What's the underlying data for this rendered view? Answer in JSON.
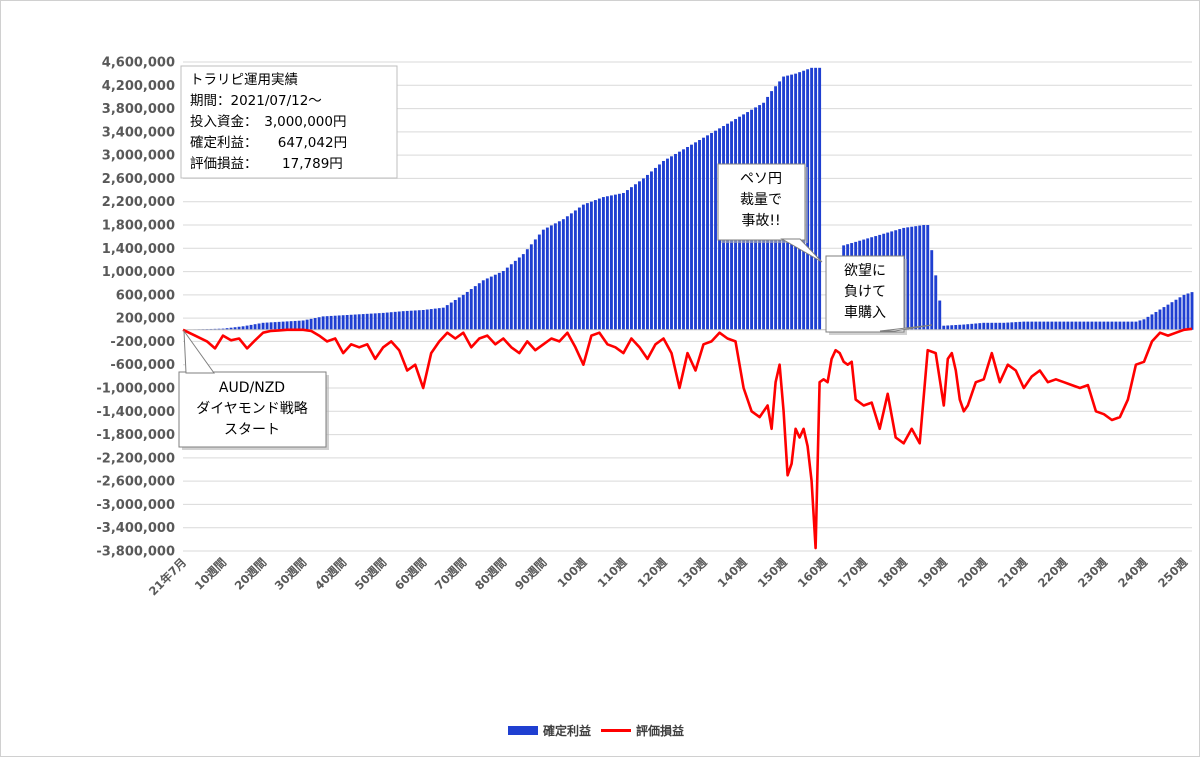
{
  "chart_data": {
    "type": "bar+line",
    "title": "",
    "xlabel": "",
    "ylabel": "",
    "ylim": [
      -3800000,
      4600000
    ],
    "y_ticks": [
      "4,600,000",
      "4,200,000",
      "3,800,000",
      "3,400,000",
      "3,000,000",
      "2,600,000",
      "2,200,000",
      "1,800,000",
      "1,400,000",
      "1,000,000",
      "600,000",
      "200,000",
      "-200,000",
      "-600,000",
      "-1,000,000",
      "-1,400,000",
      "-1,800,000",
      "-2,200,000",
      "-2,600,000",
      "-3,000,000",
      "-3,400,000",
      "-3,800,000"
    ],
    "x_ticks": [
      "21年7月",
      "10週間",
      "20週間",
      "30週間",
      "40週間",
      "50週間",
      "60週間",
      "70週間",
      "80週間",
      "90週間",
      "100週",
      "110週",
      "120週",
      "130週",
      "140週",
      "150週",
      "160週",
      "170週",
      "180週",
      "190週",
      "200週",
      "210週",
      "220週",
      "230週",
      "240週",
      "250週"
    ],
    "grid": true,
    "legend_position": "bottom",
    "series": [
      {
        "name": "確定利益",
        "kind": "bar",
        "color": "#1f3fd1",
        "anchor_weeks": [
          0,
          5,
          10,
          15,
          20,
          25,
          30,
          35,
          40,
          45,
          50,
          55,
          60,
          65,
          70,
          75,
          80,
          85,
          90,
          95,
          100,
          105,
          110,
          115,
          120,
          125,
          130,
          135,
          140,
          145,
          147,
          150,
          153,
          157,
          158,
          159,
          160,
          165,
          170,
          175,
          180,
          185,
          186,
          190,
          195,
          200,
          205,
          210,
          215,
          220,
          225,
          230,
          235,
          238,
          240,
          245,
          250,
          252
        ],
        "anchor_values": [
          0,
          10000,
          20000,
          60000,
          120000,
          140000,
          160000,
          230000,
          250000,
          270000,
          290000,
          320000,
          340000,
          380000,
          600000,
          850000,
          1010000,
          1300000,
          1720000,
          1900000,
          2150000,
          2280000,
          2350000,
          2600000,
          2900000,
          3100000,
          3300000,
          3500000,
          3700000,
          3900000,
          4100000,
          4350000,
          4400000,
          4500000,
          4500000,
          4500000,
          0,
          1450000,
          1550000,
          1650000,
          1750000,
          1800000,
          1800000,
          70000,
          90000,
          120000,
          120000,
          140000,
          140000,
          140000,
          140000,
          140000,
          140000,
          140000,
          180000,
          390000,
          600000,
          647042
        ]
      },
      {
        "name": "評価損益",
        "kind": "line",
        "color": "#ff0000",
        "anchor_weeks": [
          0,
          3,
          6,
          8,
          10,
          12,
          14,
          16,
          18,
          20,
          22,
          24,
          26,
          28,
          30,
          32,
          34,
          36,
          38,
          40,
          42,
          44,
          46,
          48,
          50,
          52,
          54,
          56,
          58,
          60,
          62,
          64,
          66,
          68,
          70,
          72,
          74,
          76,
          78,
          80,
          82,
          84,
          86,
          88,
          90,
          92,
          94,
          96,
          98,
          100,
          102,
          104,
          106,
          108,
          110,
          112,
          114,
          116,
          118,
          120,
          122,
          124,
          126,
          128,
          130,
          132,
          134,
          136,
          138,
          140,
          142,
          144,
          146,
          147,
          148,
          149,
          150,
          151,
          152,
          153,
          154,
          155,
          156,
          157,
          158,
          159,
          160,
          161,
          162,
          163,
          164,
          165,
          166,
          167,
          168,
          170,
          172,
          174,
          176,
          178,
          180,
          182,
          184,
          186,
          188,
          190,
          191,
          192,
          193,
          194,
          195,
          196,
          197,
          198,
          200,
          202,
          204,
          206,
          208,
          210,
          212,
          214,
          216,
          218,
          220,
          222,
          224,
          226,
          228,
          230,
          232,
          234,
          236,
          238,
          240,
          242,
          244,
          246,
          248,
          250,
          252
        ],
        "anchor_values": [
          0,
          -100000,
          -200000,
          -320000,
          -100000,
          -180000,
          -150000,
          -320000,
          -180000,
          -50000,
          -20000,
          -10000,
          0,
          0,
          0,
          -20000,
          -100000,
          -200000,
          -150000,
          -400000,
          -250000,
          -300000,
          -250000,
          -500000,
          -300000,
          -200000,
          -350000,
          -700000,
          -600000,
          -1000000,
          -400000,
          -200000,
          -50000,
          -150000,
          -50000,
          -300000,
          -150000,
          -100000,
          -250000,
          -150000,
          -300000,
          -400000,
          -200000,
          -350000,
          -250000,
          -150000,
          -200000,
          -50000,
          -300000,
          -600000,
          -100000,
          -50000,
          -250000,
          -300000,
          -400000,
          -150000,
          -300000,
          -500000,
          -250000,
          -150000,
          -400000,
          -1000000,
          -400000,
          -700000,
          -250000,
          -200000,
          -50000,
          -150000,
          -200000,
          -1000000,
          -1400000,
          -1500000,
          -1300000,
          -1700000,
          -900000,
          -600000,
          -1400000,
          -2500000,
          -2300000,
          -1700000,
          -1850000,
          -1700000,
          -2000000,
          -2600000,
          -3750000,
          -900000,
          -850000,
          -900000,
          -500000,
          -350000,
          -400000,
          -550000,
          -600000,
          -550000,
          -1200000,
          -1300000,
          -1250000,
          -1700000,
          -1100000,
          -1850000,
          -1950000,
          -1700000,
          -1950000,
          -350000,
          -400000,
          -1300000,
          -500000,
          -400000,
          -700000,
          -1200000,
          -1400000,
          -1300000,
          -1100000,
          -900000,
          -850000,
          -400000,
          -900000,
          -600000,
          -700000,
          -1000000,
          -800000,
          -700000,
          -900000,
          -850000,
          -900000,
          -950000,
          -1000000,
          -950000,
          -1400000,
          -1450000,
          -1550000,
          -1500000,
          -1200000,
          -600000,
          -550000,
          -200000,
          -50000,
          -100000,
          -50000,
          0,
          17789
        ]
      }
    ],
    "annotations": [
      {
        "id": "info",
        "lines": [
          "トラリピ運用実績",
          "期間：2021/07/12～",
          "投入資金：　3,000,000円",
          "確定利益：　　647,042円",
          "評価損益：　　 17,789円"
        ]
      },
      {
        "id": "start",
        "lines": [
          "AUD/NZD",
          "ダイヤモンド戦略",
          "スタート"
        ]
      },
      {
        "id": "peso",
        "lines": [
          "ペソ円",
          "裁量で",
          "事故!!"
        ]
      },
      {
        "id": "car",
        "lines": [
          "欲望に",
          "負けて",
          "車購入"
        ]
      }
    ]
  }
}
